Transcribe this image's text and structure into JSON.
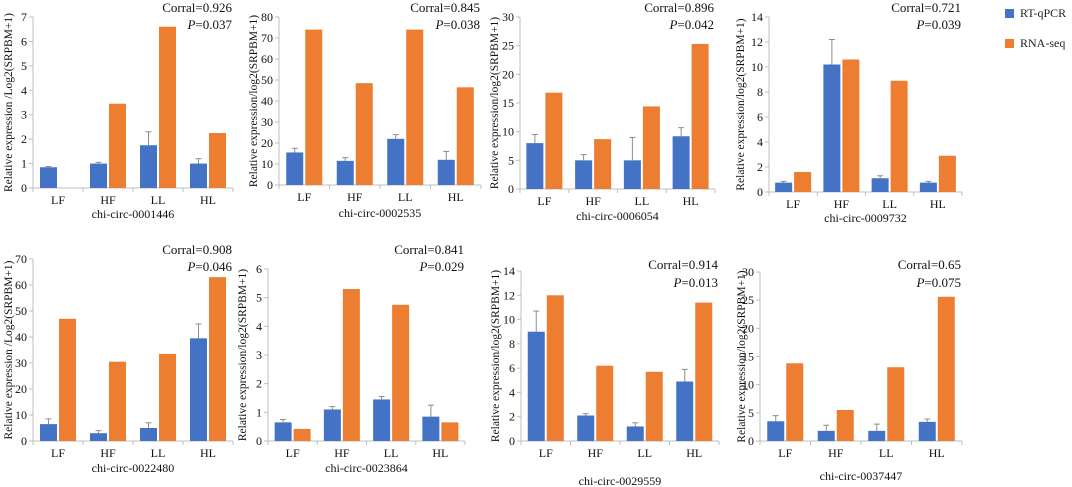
{
  "colors": {
    "rtqpcr": "#4472C4",
    "rnaseq": "#ED7D31",
    "axis": "#bfbfbf",
    "error": "#8c8c8c"
  },
  "legend": [
    {
      "label": "RT-qPCR",
      "color": "#4472C4"
    },
    {
      "label": "RNA-seq",
      "color": "#ED7D31"
    }
  ],
  "chart_data": [
    {
      "type": "bar",
      "title": "chi-circ-0001446",
      "ylabel": "Relative expression /Log2(SRPBM+1)",
      "categories": [
        "LF",
        "HF",
        "LL",
        "HL"
      ],
      "ylim": [
        0,
        7
      ],
      "yticks": [
        0,
        1,
        2,
        3,
        4,
        5,
        6,
        7
      ],
      "corral": "Corral=0.926",
      "p_label": "P",
      "p_value": "=0.037",
      "series": [
        {
          "name": "RT-qPCR",
          "values": [
            0.85,
            1.0,
            1.75,
            1.0
          ],
          "errors": [
            0.03,
            0.05,
            0.55,
            0.2
          ]
        },
        {
          "name": "RNA-seq",
          "values": [
            0,
            3.45,
            6.6,
            2.25
          ]
        }
      ]
    },
    {
      "type": "bar",
      "title": "chi-circ-0002535",
      "ylabel": "Relative expression/log2(SRPBM+1)",
      "categories": [
        "LF",
        "HF",
        "LL",
        "HL"
      ],
      "ylim": [
        0,
        80
      ],
      "yticks": [
        0,
        10,
        20,
        30,
        40,
        50,
        60,
        70,
        80
      ],
      "corral": "Corral=0.845",
      "p_label": "P",
      "p_value": "=0.038",
      "series": [
        {
          "name": "RT-qPCR",
          "values": [
            15.5,
            11.5,
            22,
            12
          ],
          "errors": [
            2,
            1.5,
            2,
            4
          ]
        },
        {
          "name": "RNA-seq",
          "values": [
            74,
            48.5,
            74,
            46.5
          ]
        }
      ]
    },
    {
      "type": "bar",
      "title": "chi-circ-0006054",
      "ylabel": "Relative expression/log2(SRPBM+1)",
      "categories": [
        "LF",
        "HF",
        "LL",
        "HL"
      ],
      "ylim": [
        0,
        30
      ],
      "yticks": [
        0,
        5,
        10,
        15,
        20,
        25,
        30
      ],
      "corral": "Corral=0.896",
      "p_label": "P",
      "p_value": "=0.042",
      "series": [
        {
          "name": "RT-qPCR",
          "values": [
            8,
            5,
            5,
            9.2
          ],
          "errors": [
            1.5,
            1,
            4,
            1.5
          ]
        },
        {
          "name": "RNA-seq",
          "values": [
            16.8,
            8.7,
            14.4,
            25.3
          ]
        }
      ]
    },
    {
      "type": "bar",
      "title": "chi-circ-0009732",
      "ylabel": "Relative expression/log2(SRPBM+1)",
      "categories": [
        "LF",
        "HF",
        "LL",
        "HL"
      ],
      "ylim": [
        0,
        14
      ],
      "yticks": [
        0,
        2,
        4,
        6,
        8,
        10,
        12,
        14
      ],
      "corral": "Corral=0.721",
      "p_label": "P",
      "p_value": "=0.039",
      "series": [
        {
          "name": "RT-qPCR",
          "values": [
            0.75,
            10.2,
            1.1,
            0.75
          ],
          "errors": [
            0.1,
            2,
            0.2,
            0.1
          ]
        },
        {
          "name": "RNA-seq",
          "values": [
            1.6,
            10.6,
            8.9,
            2.9
          ]
        }
      ]
    },
    {
      "type": "bar",
      "title": "chi-circ-0022480",
      "ylabel": "Relative expression /Log2(SRPBM+1)",
      "categories": [
        "LF",
        "HF",
        "LL",
        "HL"
      ],
      "ylim": [
        0,
        70
      ],
      "yticks": [
        0,
        10,
        20,
        30,
        40,
        50,
        60,
        70
      ],
      "corral": "Corral=0.908",
      "p_label": "P",
      "p_value": "=0.046",
      "series": [
        {
          "name": "RT-qPCR",
          "values": [
            6.5,
            3,
            5,
            39.5
          ],
          "errors": [
            2,
            1,
            2,
            5.5
          ]
        },
        {
          "name": "RNA-seq",
          "values": [
            47,
            30.5,
            33.5,
            63
          ]
        }
      ]
    },
    {
      "type": "bar",
      "title": "chi-circ-0023864",
      "ylabel": "Relative expression/log2(SRPBM+1)",
      "categories": [
        "LF",
        "HF",
        "LL",
        "HL"
      ],
      "ylim": [
        0,
        6
      ],
      "yticks": [
        0,
        1,
        2,
        3,
        4,
        5,
        6
      ],
      "corral": "Corral=0.841",
      "p_label": "P",
      "p_value": "=0.029",
      "series": [
        {
          "name": "RT-qPCR",
          "values": [
            0.65,
            1.1,
            1.45,
            0.85
          ],
          "errors": [
            0.1,
            0.1,
            0.1,
            0.4
          ]
        },
        {
          "name": "RNA-seq",
          "values": [
            0.42,
            5.3,
            4.75,
            0.65
          ]
        }
      ]
    },
    {
      "type": "bar",
      "title": "chi-circ-0029559",
      "ylabel": "Relative expression/log2(SRPBM+1)",
      "categories": [
        "LF",
        "HF",
        "LL",
        "HL"
      ],
      "ylim": [
        0,
        14
      ],
      "yticks": [
        0,
        2,
        4,
        6,
        8,
        10,
        12,
        14
      ],
      "corral": "Corral=0.914",
      "p_label": "P",
      "p_value": "=0.013",
      "series": [
        {
          "name": "RT-qPCR",
          "values": [
            9,
            2.1,
            1.2,
            4.9
          ],
          "errors": [
            1.7,
            0.15,
            0.3,
            1
          ]
        },
        {
          "name": "RNA-seq",
          "values": [
            12,
            6.2,
            5.7,
            11.4
          ]
        }
      ]
    },
    {
      "type": "bar",
      "title": "chi-circ-0037447",
      "ylabel": "Relative expression/log2(SRPBM+1)",
      "categories": [
        "LF",
        "HF",
        "LL",
        "HL"
      ],
      "ylim": [
        0,
        30
      ],
      "yticks": [
        0,
        5,
        10,
        15,
        20,
        25,
        30
      ],
      "corral": "Corral=0.65",
      "p_label": "P",
      "p_value": "=0.075",
      "series": [
        {
          "name": "RT-qPCR",
          "values": [
            3.5,
            1.8,
            1.8,
            3.4
          ],
          "errors": [
            1,
            1,
            1.2,
            0.5
          ]
        },
        {
          "name": "RNA-seq",
          "values": [
            13.8,
            5.5,
            13.1,
            25.6
          ]
        }
      ]
    }
  ]
}
